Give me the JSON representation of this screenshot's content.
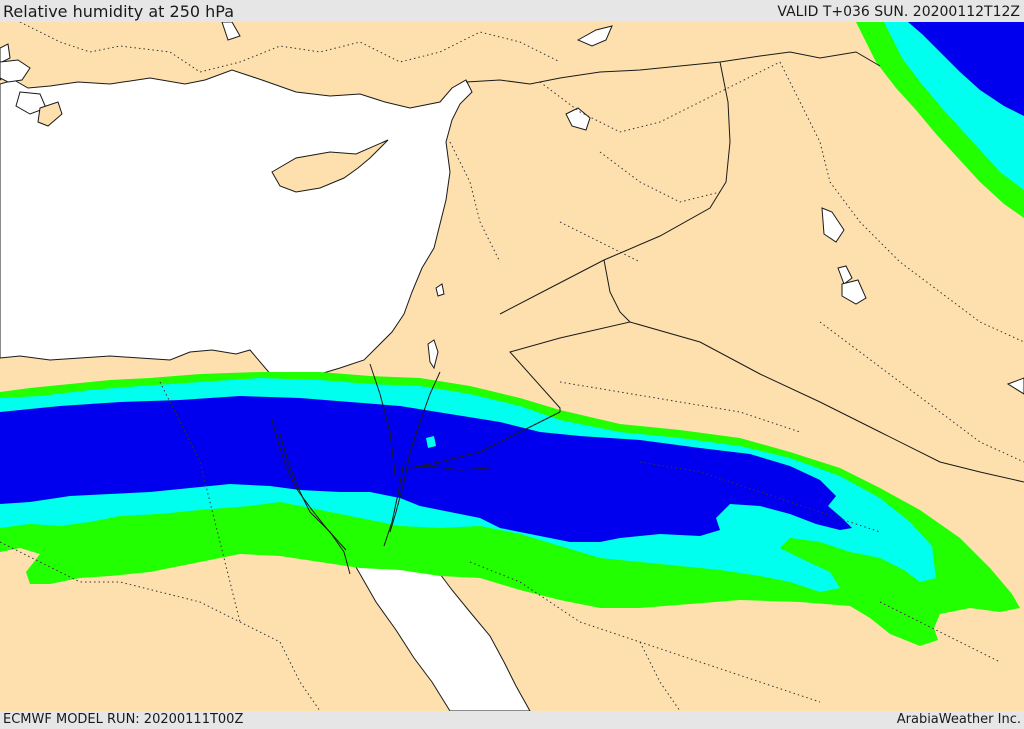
{
  "header": {
    "title": "Relative humidity at 250 hPa",
    "valid_time": "VALID T+036 SUN. 20200112T12Z"
  },
  "footer": {
    "model_run": "ECMWF MODEL RUN: 20200111T00Z",
    "credit": "ArabiaWeather Inc."
  },
  "colors": {
    "land": "#fde0ae",
    "water": "#ffffff",
    "rh_band_1": "#22ff00",
    "rh_band_2": "#00ffee",
    "rh_band_3": "#0000ee",
    "border": "#1a1a1a",
    "header_bg": "#e6e6e6"
  }
}
